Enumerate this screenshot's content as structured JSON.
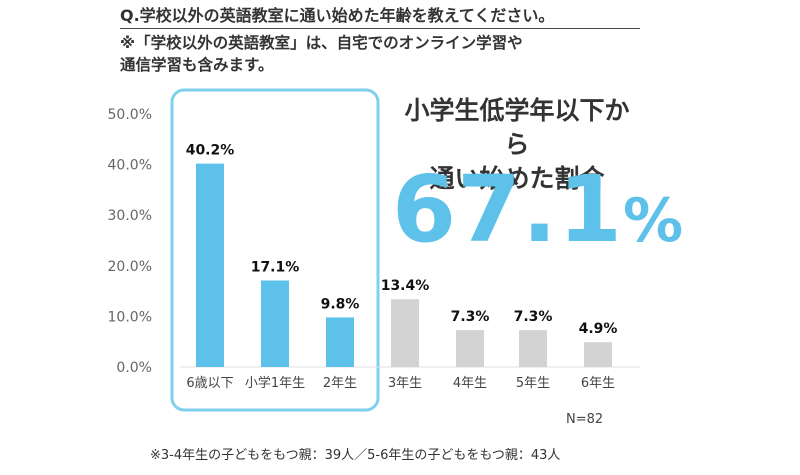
{
  "question": {
    "title": "Q.学校以外の英語教室に通い始めた年齢を教えてください。",
    "note_line1": "※「学校以外の英語教室」は、自宅でのオンライン学習や",
    "note_line2": "通信学習も含みます。"
  },
  "callout": {
    "heading_line1": "小学生低学年以下から",
    "heading_line2": "通い始めた割合",
    "value": "67.1",
    "unit": "%"
  },
  "sample_size": "N=82",
  "footnote": "※3-4年生の子どもをもつ親：39人／5-6年生の子どもをもつ親：43人",
  "colors": {
    "highlight": "#5ec1ea",
    "other": "#d3d3d3",
    "highlight_box": "#7fcfee"
  },
  "chart_data": {
    "type": "bar",
    "categories": [
      "6歳以下",
      "小学1年生",
      "2年生",
      "3年生",
      "4年生",
      "5年生",
      "6年生"
    ],
    "values": [
      40.2,
      17.1,
      9.8,
      13.4,
      7.3,
      7.3,
      4.9
    ],
    "value_labels": [
      "40.2%",
      "17.1%",
      "9.8%",
      "13.4%",
      "7.3%",
      "7.3%",
      "4.9%"
    ],
    "highlighted": [
      true,
      true,
      true,
      false,
      false,
      false,
      false
    ],
    "yticks": [
      "0.0%",
      "10.0%",
      "20.0%",
      "30.0%",
      "40.0%",
      "50.0%"
    ],
    "ylim": [
      0,
      50
    ],
    "grid": false,
    "legend": "none"
  }
}
